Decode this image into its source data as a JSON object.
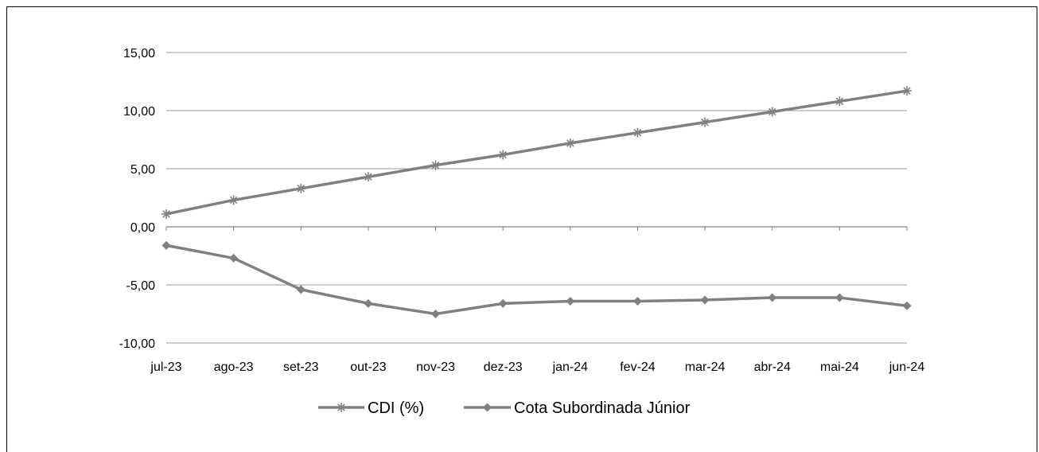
{
  "chart_data": {
    "type": "line",
    "title": "",
    "xlabel": "",
    "ylabel": "",
    "categories": [
      "jul-23",
      "ago-23",
      "set-23",
      "out-23",
      "nov-23",
      "dez-23",
      "jan-24",
      "fev-24",
      "mar-24",
      "abr-24",
      "mai-24",
      "jun-24"
    ],
    "ylim": [
      -10,
      15
    ],
    "yticks": [
      15,
      10,
      5,
      0,
      -5,
      -10
    ],
    "ytick_labels": [
      "15,00",
      "10,00",
      "5,00",
      "0,00",
      "-5,00",
      "-10,00"
    ],
    "grid": "horizontal",
    "legend_position": "bottom",
    "series": [
      {
        "name": "CDI (%)",
        "marker": "asterisk",
        "color": "#808080",
        "values": [
          1.1,
          2.3,
          3.3,
          4.3,
          5.3,
          6.2,
          7.2,
          8.1,
          9.0,
          9.9,
          10.8,
          11.7
        ]
      },
      {
        "name": "Cota Subordinada Júnior",
        "marker": "diamond",
        "color": "#808080",
        "values": [
          -1.6,
          -2.7,
          -5.4,
          -6.6,
          -7.5,
          -6.6,
          -6.4,
          -6.4,
          -6.3,
          -6.1,
          -6.1,
          -6.8
        ]
      }
    ]
  }
}
